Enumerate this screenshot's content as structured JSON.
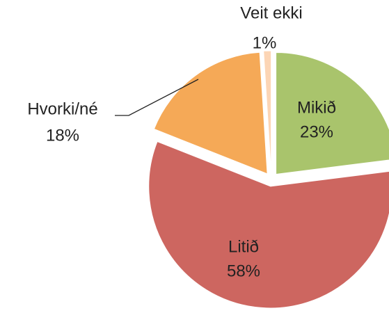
{
  "chart_data": {
    "type": "pie",
    "categories": [
      "Mikið",
      "Litið",
      "Hvorki/né",
      "Veit ekki"
    ],
    "values": [
      23,
      58,
      18,
      1
    ],
    "value_labels": [
      "23%",
      "58%",
      "18%",
      "1%"
    ],
    "colors": [
      "#a9c46c",
      "#cd6660",
      "#f5a957",
      "#fcd5b5"
    ]
  }
}
